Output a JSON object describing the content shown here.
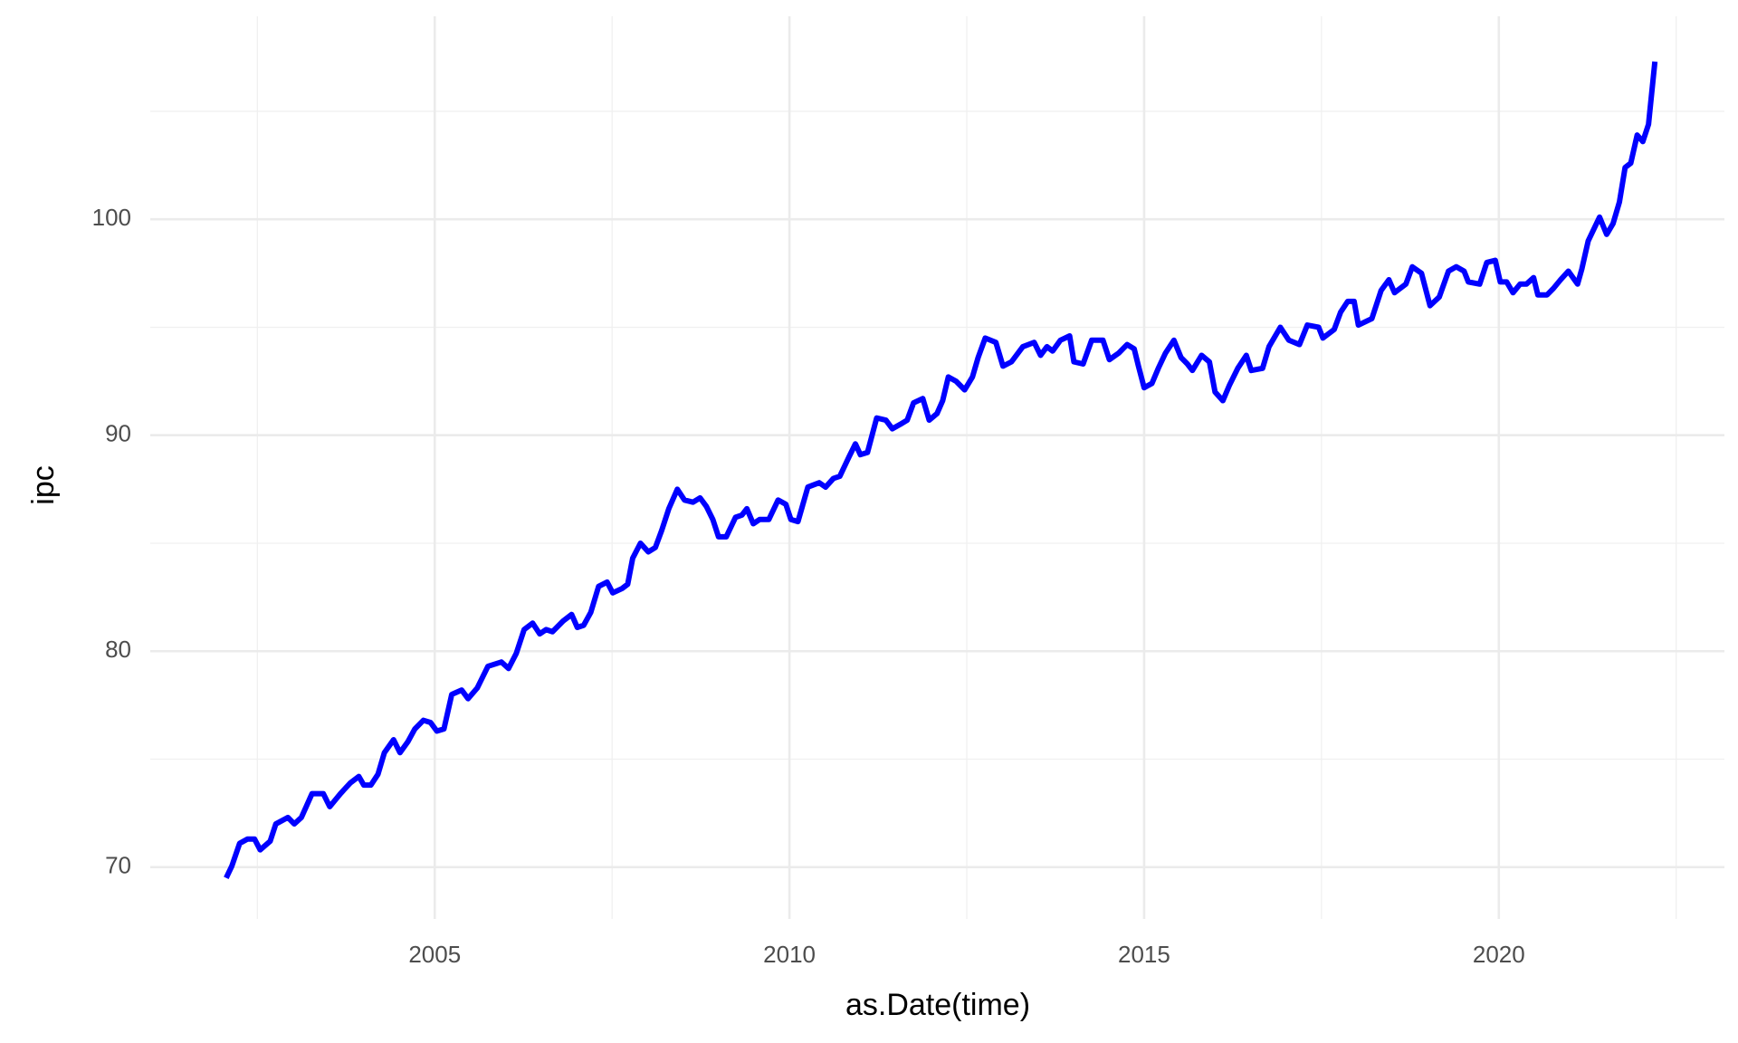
{
  "chart_data": {
    "type": "line",
    "x_label": "as.Date(time)",
    "y_label": "ipc",
    "xlim": [
      2000.99,
      2023.18
    ],
    "xticks": [
      2005,
      2010,
      2015,
      2020
    ],
    "x_minor_ticks": [
      2002.5,
      2007.5,
      2012.5,
      2017.5,
      2022.5
    ],
    "ylim": [
      67.6,
      109.4
    ],
    "yticks": [
      70,
      80,
      90,
      100
    ],
    "y_minor_ticks": [
      75,
      85,
      95,
      105
    ],
    "grid": true,
    "series": [
      {
        "color": "#0000ff",
        "x": [
          2002.06,
          2002.14,
          2002.25,
          2002.36,
          2002.46,
          2002.54,
          2002.68,
          2002.76,
          2002.93,
          2003.02,
          2003.12,
          2003.27,
          2003.43,
          2003.52,
          2003.67,
          2003.81,
          2003.93,
          2004.0,
          2004.1,
          2004.2,
          2004.29,
          2004.42,
          2004.51,
          2004.62,
          2004.72,
          2004.84,
          2004.94,
          2005.03,
          2005.13,
          2005.24,
          2005.38,
          2005.47,
          2005.6,
          2005.75,
          2005.94,
          2006.04,
          2006.15,
          2006.26,
          2006.38,
          2006.48,
          2006.57,
          2006.66,
          2006.81,
          2006.93,
          2007.01,
          2007.1,
          2007.2,
          2007.31,
          2007.43,
          2007.51,
          2007.64,
          2007.72,
          2007.79,
          2007.9,
          2008.01,
          2008.11,
          2008.2,
          2008.3,
          2008.42,
          2008.52,
          2008.64,
          2008.74,
          2008.83,
          2008.92,
          2009.0,
          2009.11,
          2009.24,
          2009.33,
          2009.4,
          2009.49,
          2009.58,
          2009.71,
          2009.84,
          2009.95,
          2010.02,
          2010.12,
          2010.26,
          2010.42,
          2010.51,
          2010.62,
          2010.71,
          2010.84,
          2010.93,
          2011.0,
          2011.1,
          2011.23,
          2011.36,
          2011.45,
          2011.56,
          2011.66,
          2011.75,
          2011.88,
          2011.97,
          2012.08,
          2012.16,
          2012.24,
          2012.35,
          2012.47,
          2012.58,
          2012.66,
          2012.76,
          2012.91,
          2013.01,
          2013.13,
          2013.29,
          2013.45,
          2013.54,
          2013.63,
          2013.71,
          2013.82,
          2013.95,
          2014.01,
          2014.14,
          2014.26,
          2014.42,
          2014.51,
          2014.64,
          2014.76,
          2014.86,
          2014.92,
          2015.0,
          2015.11,
          2015.2,
          2015.3,
          2015.42,
          2015.52,
          2015.61,
          2015.68,
          2015.81,
          2015.92,
          2016.0,
          2016.11,
          2016.2,
          2016.32,
          2016.44,
          2016.51,
          2016.67,
          2016.76,
          2016.92,
          2017.04,
          2017.19,
          2017.3,
          2017.46,
          2017.52,
          2017.68,
          2017.77,
          2017.87,
          2017.96,
          2018.02,
          2018.21,
          2018.34,
          2018.45,
          2018.53,
          2018.69,
          2018.78,
          2018.91,
          2019.03,
          2019.16,
          2019.29,
          2019.4,
          2019.51,
          2019.57,
          2019.73,
          2019.83,
          2019.95,
          2020.02,
          2020.11,
          2020.2,
          2020.3,
          2020.39,
          2020.49,
          2020.55,
          2020.68,
          2020.77,
          2020.87,
          2020.98,
          2021.11,
          2021.17,
          2021.26,
          2021.42,
          2021.52,
          2021.61,
          2021.7,
          2021.78,
          2021.86,
          2021.95,
          2022.03,
          2022.11,
          2022.2
        ],
        "values": [
          69.5,
          70.05,
          71.1,
          71.3,
          71.3,
          70.8,
          71.2,
          72.0,
          72.3,
          72.0,
          72.3,
          73.4,
          73.4,
          72.8,
          73.4,
          73.9,
          74.2,
          73.8,
          73.8,
          74.3,
          75.3,
          75.9,
          75.3,
          75.8,
          76.4,
          76.8,
          76.7,
          76.3,
          76.4,
          78.0,
          78.2,
          77.8,
          78.3,
          79.3,
          79.5,
          79.2,
          79.9,
          81.0,
          81.3,
          80.8,
          81.0,
          80.9,
          81.4,
          81.7,
          81.1,
          81.2,
          81.8,
          83.0,
          83.2,
          82.7,
          82.9,
          83.1,
          84.3,
          85.0,
          84.6,
          84.8,
          85.6,
          86.6,
          87.5,
          87.0,
          86.9,
          87.1,
          86.7,
          86.1,
          85.3,
          85.3,
          86.2,
          86.3,
          86.6,
          85.9,
          86.1,
          86.1,
          87.0,
          86.8,
          86.1,
          86.0,
          87.6,
          87.8,
          87.6,
          88.0,
          88.1,
          89.0,
          89.6,
          89.1,
          89.2,
          90.8,
          90.7,
          90.3,
          90.5,
          90.7,
          91.5,
          91.7,
          90.7,
          91.0,
          91.6,
          92.7,
          92.5,
          92.1,
          92.7,
          93.6,
          94.5,
          94.3,
          93.2,
          93.4,
          94.1,
          94.3,
          93.7,
          94.1,
          93.9,
          94.4,
          94.6,
          93.4,
          93.3,
          94.4,
          94.4,
          93.5,
          93.8,
          94.2,
          94.0,
          93.2,
          92.2,
          92.4,
          93.1,
          93.8,
          94.4,
          93.6,
          93.3,
          93.0,
          93.7,
          93.4,
          92.0,
          91.6,
          92.3,
          93.1,
          93.7,
          93.0,
          93.1,
          94.1,
          95.0,
          94.4,
          94.2,
          95.1,
          95.0,
          94.5,
          94.9,
          95.7,
          96.2,
          96.2,
          95.1,
          95.4,
          96.7,
          97.2,
          96.6,
          97.0,
          97.8,
          97.5,
          96.0,
          96.4,
          97.6,
          97.8,
          97.6,
          97.1,
          97.0,
          98.0,
          98.1,
          97.1,
          97.1,
          96.6,
          97.0,
          97.0,
          97.3,
          96.5,
          96.5,
          96.8,
          97.2,
          97.6,
          97.0,
          97.7,
          99.0,
          100.1,
          99.3,
          99.8,
          100.8,
          102.4,
          102.6,
          103.9,
          103.6,
          104.4,
          107.3
        ]
      }
    ]
  }
}
